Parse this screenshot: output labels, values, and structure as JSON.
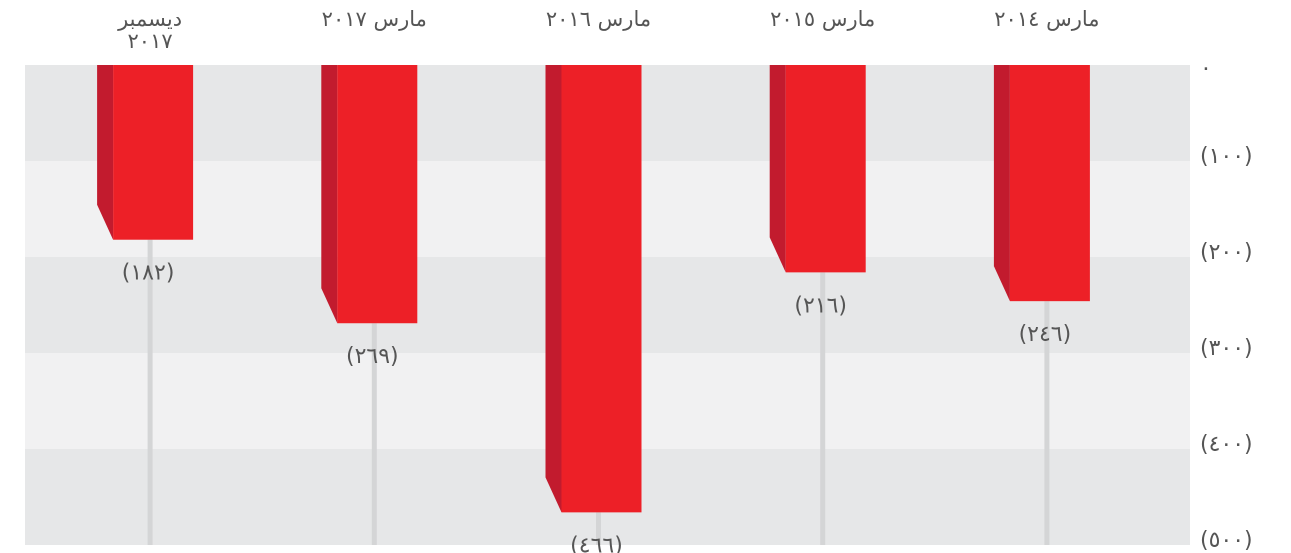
{
  "chart_data": {
    "type": "bar",
    "categories": [
      "ديسمبر ٢٠١٧",
      "مارس ٢٠١٧",
      "مارس ٢٠١٦",
      "مارس ٢٠١٥",
      "مارس ٢٠١٤"
    ],
    "values": [
      -182,
      -269,
      -466,
      -216,
      -246
    ],
    "value_labels": [
      "(١٨٢)",
      "(٢٦٩)",
      "(٤٦٦)",
      "(٢١٦)",
      "(٢٤٦)"
    ],
    "color": "#ed2027",
    "ylim": [
      -500,
      0
    ],
    "yticks": [
      {
        "value": 0,
        "label": "٠"
      },
      {
        "value": -100,
        "label": "(١٠٠)"
      },
      {
        "value": -200,
        "label": "(٢٠٠)"
      },
      {
        "value": -300,
        "label": "(٣٠٠)"
      },
      {
        "value": -400,
        "label": "(٤٠٠)"
      },
      {
        "value": -500,
        "label": "(٥٠٠)"
      }
    ],
    "grid": true
  }
}
